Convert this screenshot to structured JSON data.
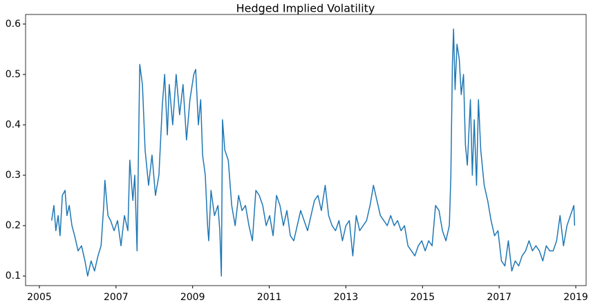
{
  "chart_data": {
    "type": "line",
    "title": "Hedged Implied Volatility",
    "color": "#1f77b4",
    "xlim": [
      2004.64,
      2019.27
    ],
    "xticks": [
      2005,
      2007,
      2009,
      2011,
      2013,
      2015,
      2017,
      2019
    ],
    "ylim": [
      0.081,
      0.619
    ],
    "yticks": [
      0.1,
      0.2,
      0.3,
      0.4,
      0.5,
      0.6
    ],
    "grid": false,
    "x": [
      2005.32,
      2005.38,
      2005.43,
      2005.49,
      2005.54,
      2005.6,
      2005.67,
      2005.72,
      2005.78,
      2005.85,
      2005.92,
      2006.01,
      2006.1,
      2006.19,
      2006.26,
      2006.35,
      2006.44,
      2006.53,
      2006.61,
      2006.68,
      2006.71,
      2006.79,
      2006.86,
      2006.95,
      2007.04,
      2007.13,
      2007.22,
      2007.31,
      2007.36,
      2007.44,
      2007.49,
      2007.55,
      2007.62,
      2007.69,
      2007.76,
      2007.85,
      2007.94,
      2008.03,
      2008.12,
      2008.21,
      2008.27,
      2008.34,
      2008.39,
      2008.48,
      2008.57,
      2008.66,
      2008.75,
      2008.84,
      2008.93,
      2009.03,
      2009.08,
      2009.15,
      2009.21,
      2009.26,
      2009.33,
      2009.39,
      2009.42,
      2009.48,
      2009.57,
      2009.66,
      2009.71,
      2009.75,
      2009.78,
      2009.84,
      2009.93,
      2010.02,
      2010.11,
      2010.2,
      2010.29,
      2010.38,
      2010.47,
      2010.56,
      2010.65,
      2010.74,
      2010.83,
      2010.92,
      2011.01,
      2011.1,
      2011.19,
      2011.28,
      2011.37,
      2011.46,
      2011.55,
      2011.64,
      2011.73,
      2011.82,
      2011.91,
      2012.0,
      2012.09,
      2012.18,
      2012.27,
      2012.36,
      2012.46,
      2012.55,
      2012.64,
      2012.73,
      2012.82,
      2012.91,
      2013.0,
      2013.09,
      2013.18,
      2013.27,
      2013.36,
      2013.45,
      2013.54,
      2013.63,
      2013.72,
      2013.81,
      2013.9,
      2013.99,
      2014.08,
      2014.17,
      2014.26,
      2014.35,
      2014.44,
      2014.53,
      2014.62,
      2014.71,
      2014.8,
      2014.89,
      2014.98,
      2015.07,
      2015.16,
      2015.25,
      2015.34,
      2015.43,
      2015.52,
      2015.61,
      2015.7,
      2015.74,
      2015.78,
      2015.81,
      2015.85,
      2015.9,
      2015.96,
      2016.01,
      2016.07,
      2016.12,
      2016.17,
      2016.25,
      2016.3,
      2016.35,
      2016.41,
      2016.46,
      2016.52,
      2016.61,
      2016.7,
      2016.79,
      2016.88,
      2016.97,
      2017.06,
      2017.15,
      2017.24,
      2017.33,
      2017.42,
      2017.51,
      2017.6,
      2017.69,
      2017.78,
      2017.87,
      2017.96,
      2018.05,
      2018.14,
      2018.23,
      2018.32,
      2018.41,
      2018.5,
      2018.59,
      2018.68,
      2018.77,
      2018.86,
      2018.95,
      2018.97
    ],
    "values": [
      0.21,
      0.24,
      0.19,
      0.22,
      0.18,
      0.26,
      0.27,
      0.22,
      0.24,
      0.2,
      0.18,
      0.15,
      0.16,
      0.13,
      0.1,
      0.13,
      0.11,
      0.14,
      0.16,
      0.24,
      0.29,
      0.22,
      0.21,
      0.19,
      0.21,
      0.16,
      0.22,
      0.19,
      0.33,
      0.25,
      0.3,
      0.15,
      0.52,
      0.48,
      0.35,
      0.28,
      0.34,
      0.26,
      0.3,
      0.44,
      0.5,
      0.38,
      0.48,
      0.4,
      0.5,
      0.42,
      0.48,
      0.37,
      0.45,
      0.5,
      0.51,
      0.4,
      0.45,
      0.34,
      0.3,
      0.2,
      0.17,
      0.27,
      0.22,
      0.24,
      0.19,
      0.1,
      0.41,
      0.35,
      0.33,
      0.24,
      0.2,
      0.26,
      0.23,
      0.24,
      0.2,
      0.17,
      0.27,
      0.26,
      0.24,
      0.2,
      0.22,
      0.18,
      0.26,
      0.24,
      0.2,
      0.23,
      0.18,
      0.17,
      0.2,
      0.23,
      0.21,
      0.19,
      0.22,
      0.25,
      0.26,
      0.23,
      0.28,
      0.22,
      0.2,
      0.19,
      0.21,
      0.17,
      0.2,
      0.21,
      0.14,
      0.22,
      0.19,
      0.2,
      0.21,
      0.24,
      0.28,
      0.25,
      0.22,
      0.21,
      0.2,
      0.22,
      0.2,
      0.21,
      0.19,
      0.2,
      0.16,
      0.15,
      0.14,
      0.16,
      0.17,
      0.15,
      0.17,
      0.16,
      0.24,
      0.23,
      0.19,
      0.17,
      0.2,
      0.3,
      0.52,
      0.59,
      0.47,
      0.56,
      0.53,
      0.46,
      0.5,
      0.36,
      0.32,
      0.45,
      0.3,
      0.41,
      0.28,
      0.45,
      0.35,
      0.28,
      0.25,
      0.21,
      0.18,
      0.19,
      0.13,
      0.12,
      0.17,
      0.11,
      0.13,
      0.12,
      0.14,
      0.15,
      0.17,
      0.15,
      0.16,
      0.15,
      0.13,
      0.16,
      0.15,
      0.15,
      0.17,
      0.22,
      0.16,
      0.2,
      0.22,
      0.24,
      0.2
    ]
  }
}
